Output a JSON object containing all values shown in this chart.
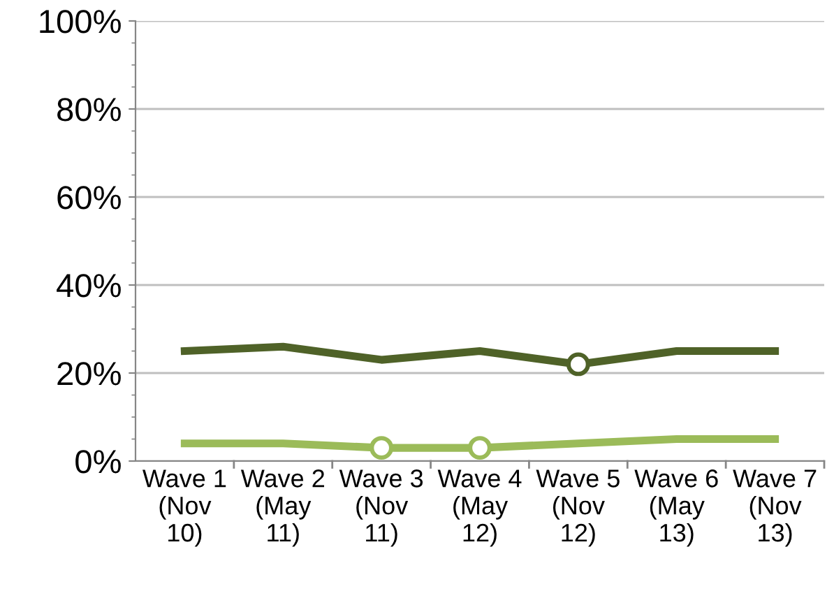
{
  "chart_data": {
    "type": "line",
    "categories": [
      "Wave 1\n(Nov\n10)",
      "Wave 2\n(May\n11)",
      "Wave 3\n(Nov\n11)",
      "Wave 4\n(May\n12)",
      "Wave 5\n(Nov\n12)",
      "Wave 6\n(May\n13)",
      "Wave 7\n(Nov\n13)"
    ],
    "series": [
      {
        "color": "#4f6228",
        "values": [
          25,
          26,
          23,
          25,
          22,
          25,
          25
        ]
      },
      {
        "color": "#9bbb59",
        "values": [
          4,
          4,
          3,
          3,
          4,
          5,
          5
        ]
      },
      {
        "type": "scatter",
        "color": "#4f6228",
        "values": [
          null,
          null,
          null,
          null,
          22,
          null,
          null
        ]
      },
      {
        "type": "scatter",
        "color": "#9bbb59",
        "values": [
          null,
          null,
          3,
          3,
          null,
          null,
          null
        ]
      }
    ],
    "ylim": [
      0,
      100
    ],
    "yticks": [
      {
        "value": 0,
        "label": "0%"
      },
      {
        "value": 20,
        "label": "20%"
      },
      {
        "value": 40,
        "label": "40%"
      },
      {
        "value": 60,
        "label": "60%"
      },
      {
        "value": 80,
        "label": "80%"
      },
      {
        "value": 100,
        "label": "100%"
      }
    ],
    "grid": "y",
    "legend": false
  }
}
